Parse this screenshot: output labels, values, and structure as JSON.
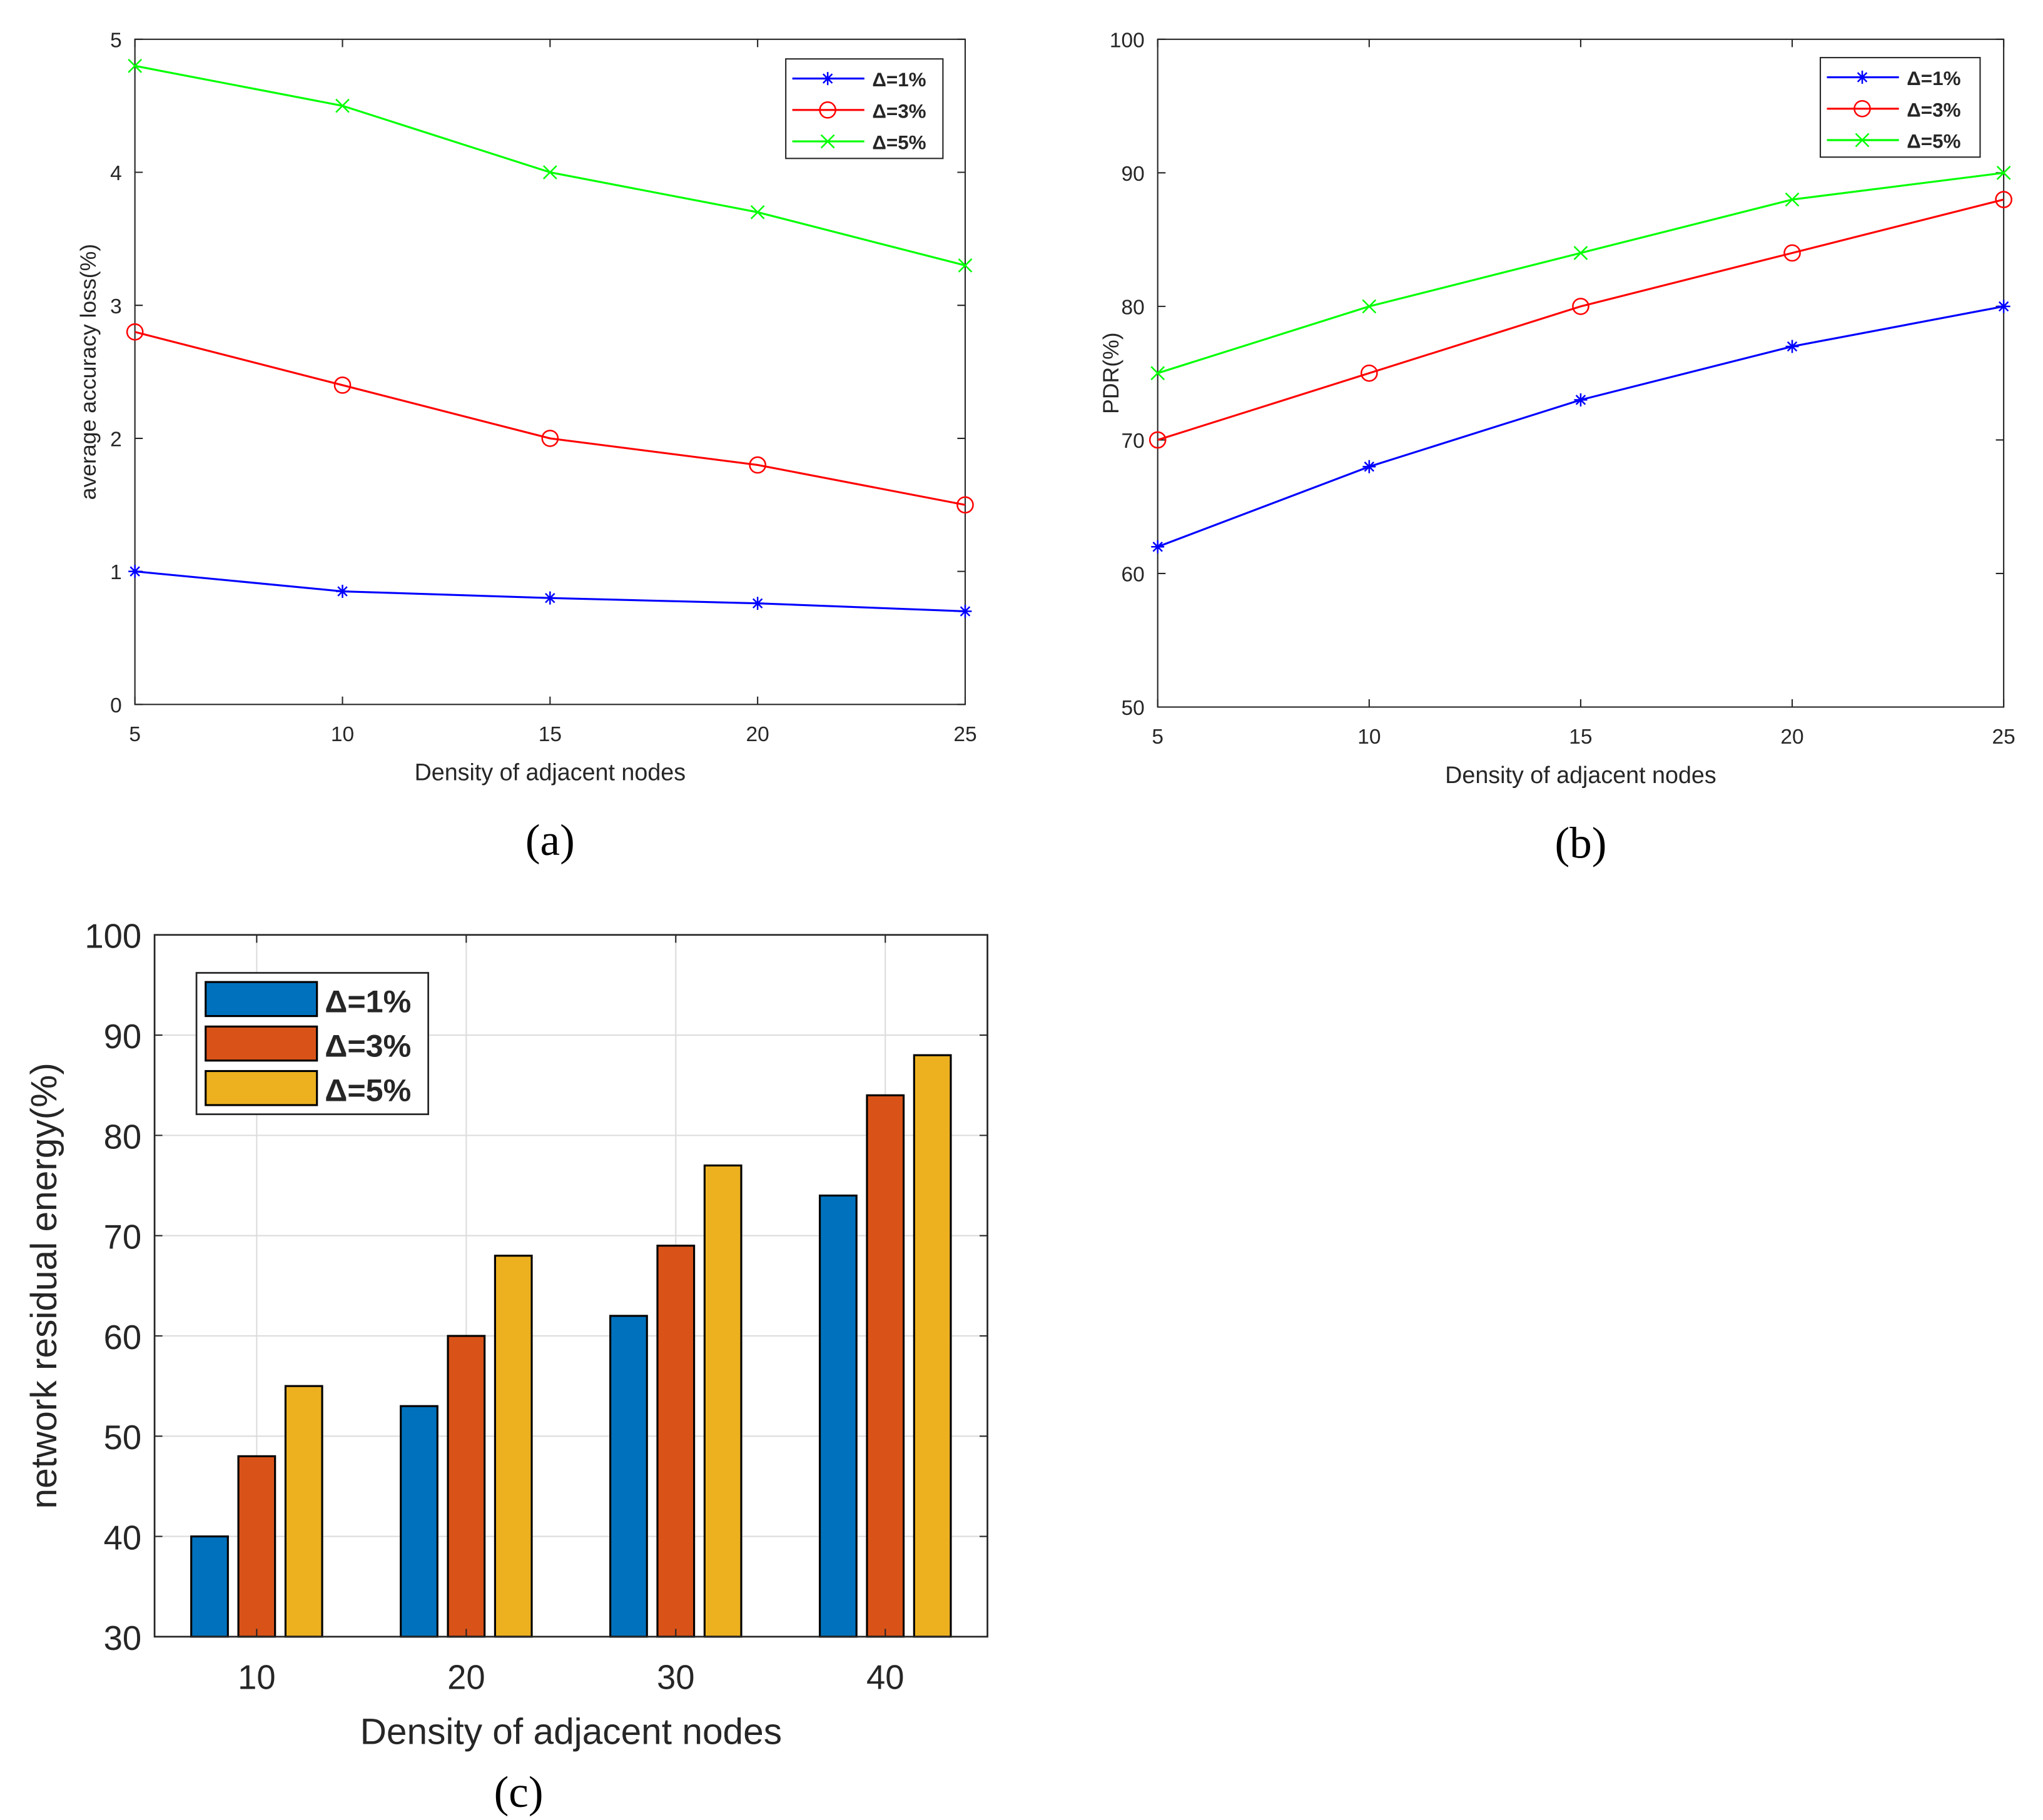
{
  "chart_data": [
    {
      "type": "line",
      "panel_label": "(a)",
      "xlabel": "Density of adjacent nodes",
      "ylabel": "average accuracy loss(%)",
      "x": [
        5,
        10,
        15,
        20,
        25
      ],
      "xlim": [
        5,
        25
      ],
      "ylim": [
        0,
        5
      ],
      "xticks": [
        5,
        10,
        15,
        20,
        25
      ],
      "yticks": [
        0,
        1,
        2,
        3,
        4,
        5
      ],
      "grid": false,
      "legend_position": "top-right",
      "series": [
        {
          "name": "Δ=1%",
          "color": "#0000ff",
          "marker": "star",
          "values": [
            1.0,
            0.85,
            0.8,
            0.76,
            0.7
          ]
        },
        {
          "name": "Δ=3%",
          "color": "#ff0000",
          "marker": "circle",
          "values": [
            2.8,
            2.4,
            2.0,
            1.8,
            1.5
          ]
        },
        {
          "name": "Δ=5%",
          "color": "#00ff00",
          "marker": "x",
          "values": [
            4.8,
            4.5,
            4.0,
            3.7,
            3.3
          ]
        }
      ]
    },
    {
      "type": "line",
      "panel_label": "(b)",
      "xlabel": "Density of adjacent nodes",
      "ylabel": "PDR(%)",
      "x": [
        5,
        10,
        15,
        20,
        25
      ],
      "xlim": [
        5,
        25
      ],
      "ylim": [
        50,
        100
      ],
      "xticks": [
        5,
        10,
        15,
        20,
        25
      ],
      "yticks": [
        50,
        60,
        70,
        80,
        90,
        100
      ],
      "grid": false,
      "legend_position": "top-right",
      "series": [
        {
          "name": "Δ=1%",
          "color": "#0000ff",
          "marker": "star",
          "values": [
            62,
            68,
            73,
            77,
            80
          ]
        },
        {
          "name": "Δ=3%",
          "color": "#ff0000",
          "marker": "circle",
          "values": [
            70,
            75,
            80,
            84,
            88
          ]
        },
        {
          "name": "Δ=5%",
          "color": "#00ff00",
          "marker": "x",
          "values": [
            75,
            80,
            84,
            88,
            90
          ]
        }
      ]
    },
    {
      "type": "bar",
      "panel_label": "(c)",
      "xlabel": "Density of adjacent nodes",
      "ylabel": "network residual energy(%)",
      "categories": [
        "10",
        "20",
        "30",
        "40"
      ],
      "ylim": [
        30,
        100
      ],
      "yticks": [
        30,
        40,
        50,
        60,
        70,
        80,
        90,
        100
      ],
      "grid": true,
      "legend_position": "top-left",
      "series": [
        {
          "name": "Δ=1%",
          "color": "#0072bd",
          "values": [
            40,
            53,
            62,
            74
          ]
        },
        {
          "name": "Δ=3%",
          "color": "#d95319",
          "values": [
            48,
            60,
            69,
            84
          ]
        },
        {
          "name": "Δ=5%",
          "color": "#edb120",
          "values": [
            55,
            68,
            77,
            88
          ]
        }
      ]
    }
  ]
}
